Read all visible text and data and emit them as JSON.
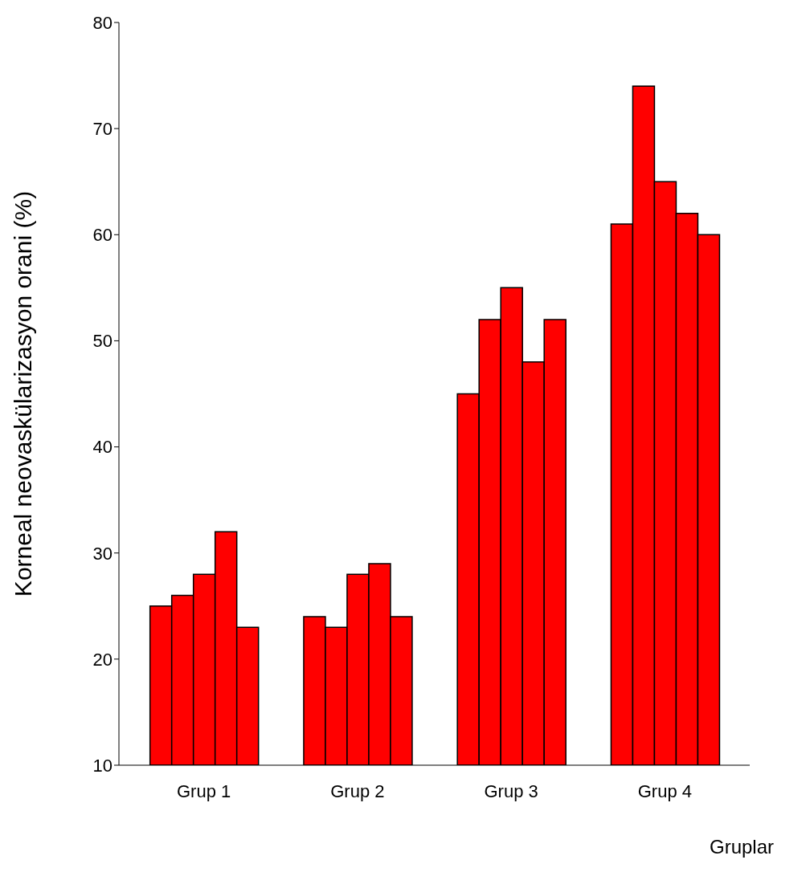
{
  "chart_data": {
    "type": "bar",
    "xlabel": "Gruplar",
    "ylabel": "Korneal neovaskülarizasyon orani (%)",
    "categories": [
      "Grup 1",
      "Grup 2",
      "Grup 3",
      "Grup 4"
    ],
    "series": [
      {
        "color": "#ff0000",
        "values": [
          25,
          24,
          45,
          61
        ]
      },
      {
        "color": "#ff0000",
        "values": [
          26,
          23,
          52,
          74
        ]
      },
      {
        "color": "#ff0000",
        "values": [
          28,
          28,
          55,
          65
        ]
      },
      {
        "color": "#ff0000",
        "values": [
          32,
          29,
          48,
          62
        ]
      },
      {
        "color": "#ff0000",
        "values": [
          23,
          24,
          52,
          60
        ]
      }
    ],
    "ylim": [
      10,
      80
    ],
    "yticks": [
      10,
      20,
      30,
      40,
      50,
      60,
      70,
      80
    ],
    "grid": false,
    "legend": false
  }
}
